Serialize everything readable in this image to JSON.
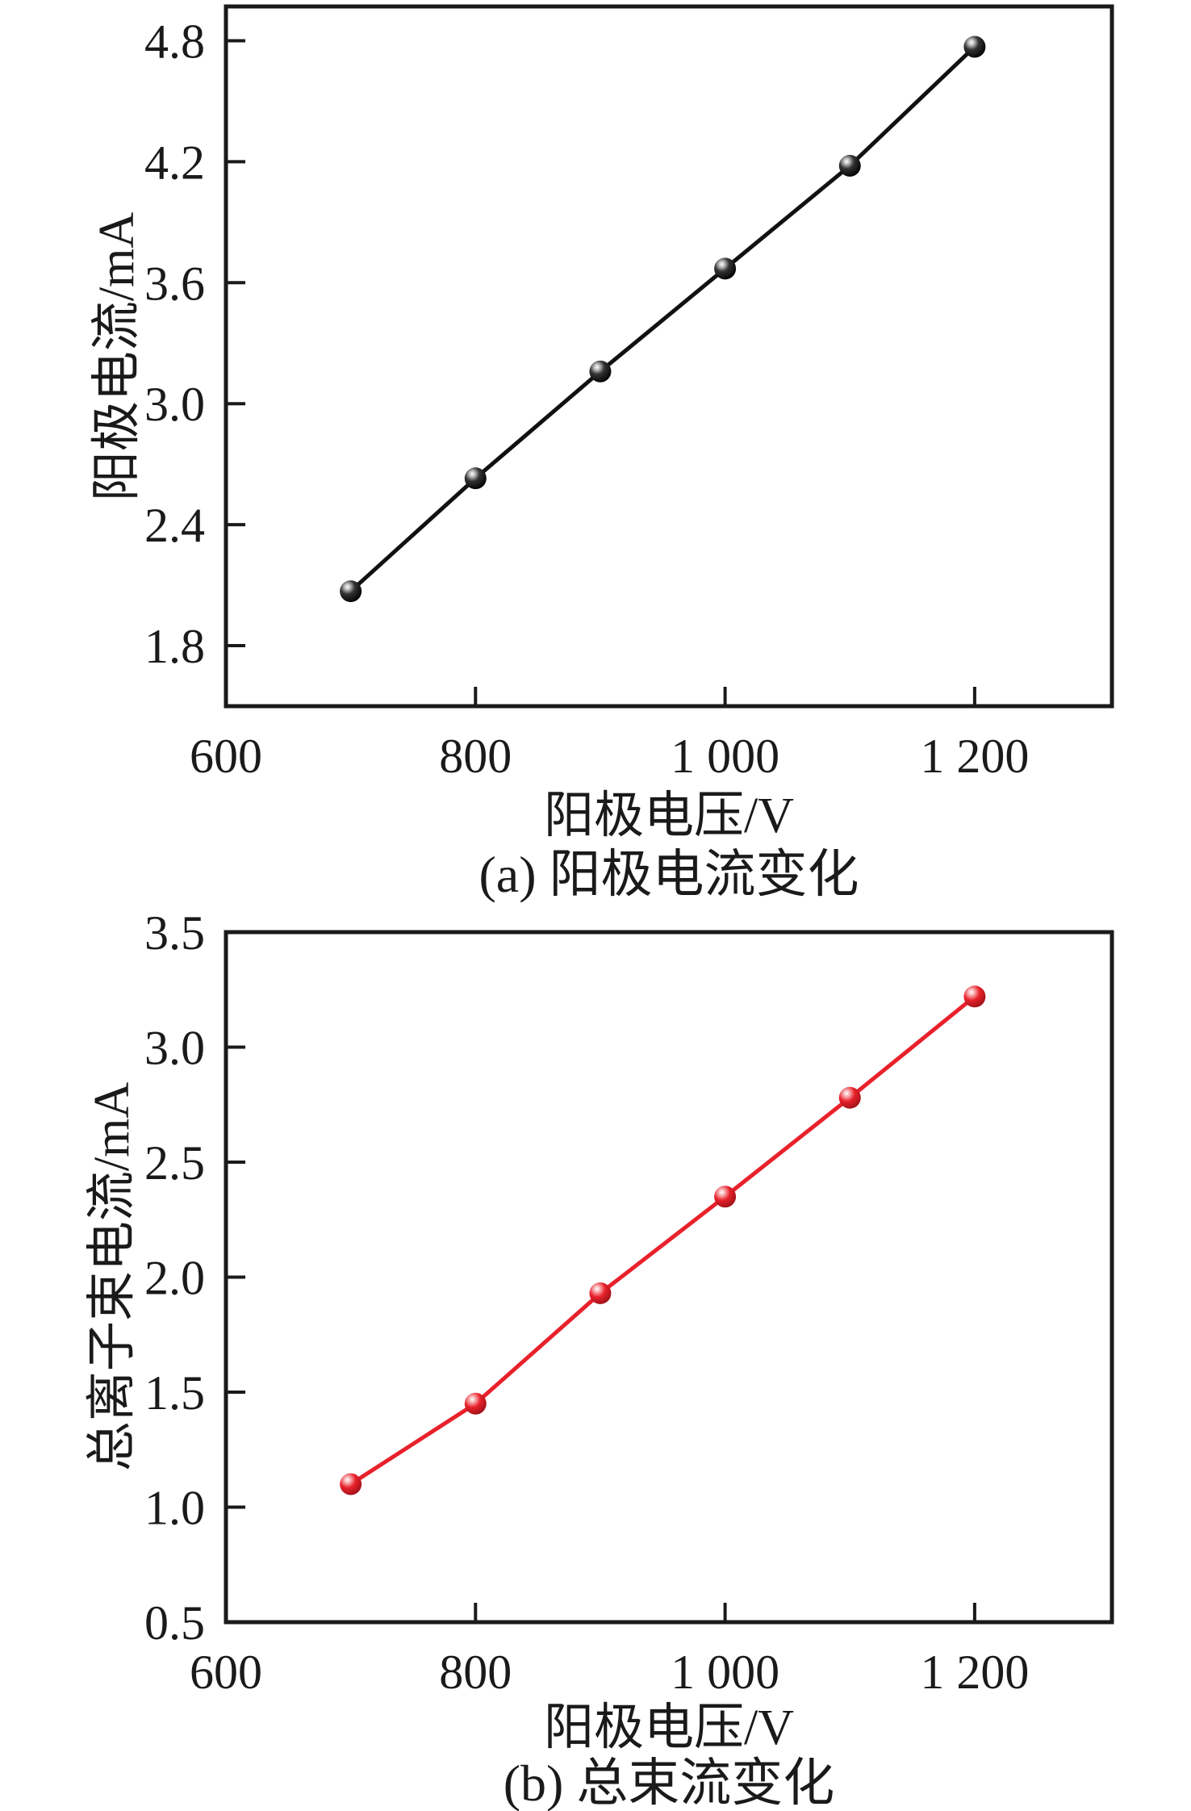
{
  "page": {
    "background": "#ffffff",
    "text_color": "#1a1a1a"
  },
  "chart_data": [
    {
      "type": "line",
      "panel": "a",
      "caption": "(a) 阳极电流变化",
      "xlabel": "阳极电压/V",
      "ylabel": "阳极电流/mA",
      "series": [
        {
          "name": "阳极电流",
          "x": [
            700,
            800,
            900,
            1000,
            1100,
            1200
          ],
          "y": [
            2.07,
            2.63,
            3.16,
            3.67,
            4.18,
            4.77
          ]
        }
      ],
      "xlim": [
        600,
        1310
      ],
      "ylim": [
        1.5,
        4.97
      ],
      "xticks": [
        {
          "v": 600,
          "label": "600",
          "tick": false
        },
        {
          "v": 800,
          "label": "800",
          "tick": true
        },
        {
          "v": 1000,
          "label": "1 000",
          "tick": true
        },
        {
          "v": 1200,
          "label": "1 200",
          "tick": true
        }
      ],
      "yticks": [
        {
          "v": 1.8,
          "label": "1.8",
          "tick": true
        },
        {
          "v": 2.4,
          "label": "2.4",
          "tick": true
        },
        {
          "v": 3.0,
          "label": "3.0",
          "tick": true
        },
        {
          "v": 3.6,
          "label": "3.6",
          "tick": true
        },
        {
          "v": 4.2,
          "label": "4.2",
          "tick": true
        },
        {
          "v": 4.8,
          "label": "4.8",
          "tick": true
        }
      ],
      "line_color": "#111111",
      "marker_style": "glossy-sphere-black",
      "grid": false,
      "legend": null
    },
    {
      "type": "line",
      "panel": "b",
      "caption": "(b) 总束流变化",
      "xlabel": "阳极电压/V",
      "ylabel": "总离子束电流/mA",
      "series": [
        {
          "name": "总离子束电流",
          "x": [
            700,
            800,
            900,
            1000,
            1100,
            1200
          ],
          "y": [
            1.1,
            1.45,
            1.93,
            2.35,
            2.78,
            3.22
          ]
        }
      ],
      "xlim": [
        600,
        1310
      ],
      "ylim": [
        0.5,
        3.5
      ],
      "xticks": [
        {
          "v": 600,
          "label": "600",
          "tick": false
        },
        {
          "v": 800,
          "label": "800",
          "tick": true
        },
        {
          "v": 1000,
          "label": "1 000",
          "tick": true
        },
        {
          "v": 1200,
          "label": "1 200",
          "tick": true
        }
      ],
      "yticks": [
        {
          "v": 0.5,
          "label": "0.5",
          "tick": false
        },
        {
          "v": 1.0,
          "label": "1.0",
          "tick": true
        },
        {
          "v": 1.5,
          "label": "1.5",
          "tick": true
        },
        {
          "v": 2.0,
          "label": "2.0",
          "tick": true
        },
        {
          "v": 2.5,
          "label": "2.5",
          "tick": true
        },
        {
          "v": 3.0,
          "label": "3.0",
          "tick": true
        },
        {
          "v": 3.5,
          "label": "3.5",
          "tick": false
        }
      ],
      "line_color": "#e8212b",
      "marker_style": "glossy-sphere-red",
      "grid": false,
      "legend": null
    }
  ]
}
